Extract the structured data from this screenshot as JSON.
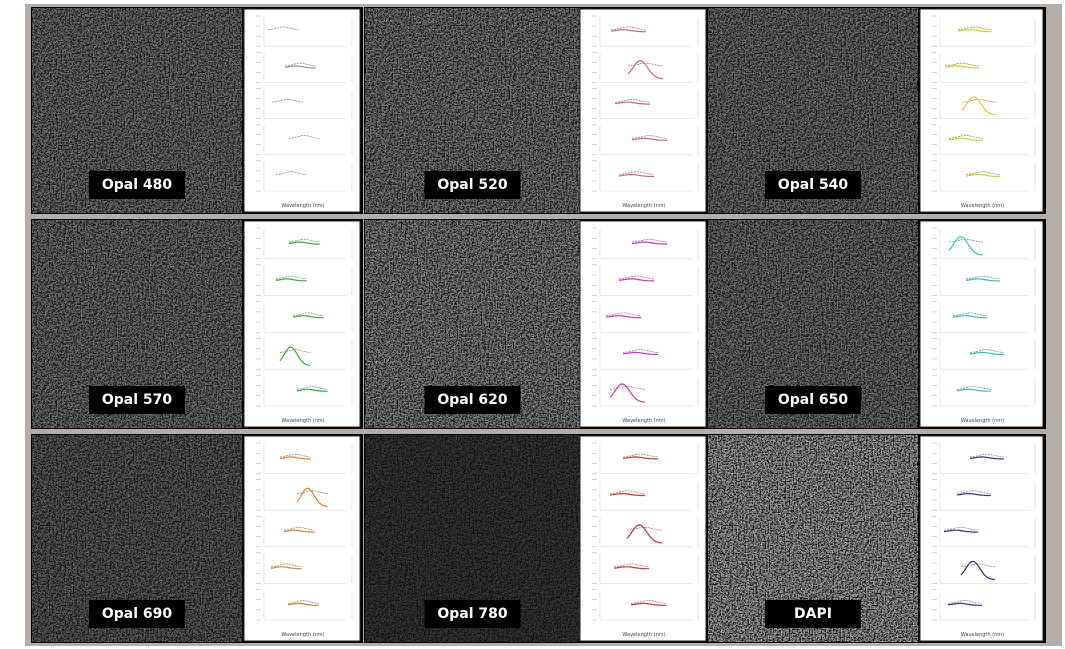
{
  "panels": [
    {
      "label": "Opal 480"
    },
    {
      "label": "Opal 520"
    },
    {
      "label": "Opal 540"
    },
    {
      "label": "Opal 570"
    },
    {
      "label": "Opal 620"
    },
    {
      "label": "Opal 650"
    },
    {
      "label": "Opal 690"
    },
    {
      "label": "Opal 780"
    },
    {
      "label": "DAPI"
    }
  ],
  "x_axis_label": "Wavelength (nm)"
}
